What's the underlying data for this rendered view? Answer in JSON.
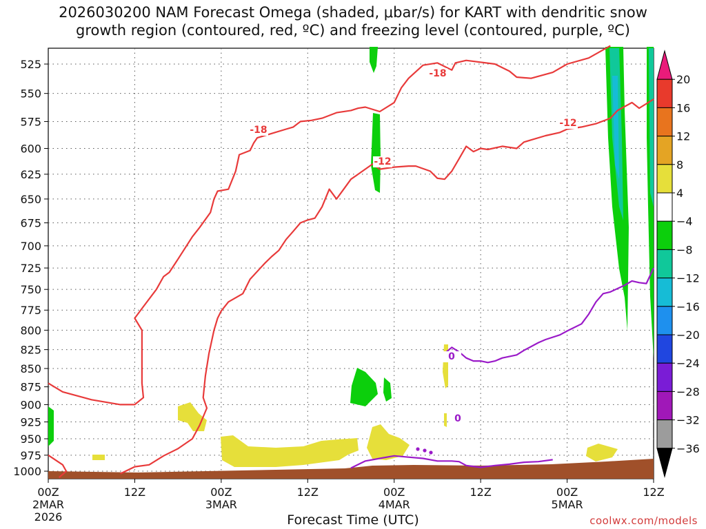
{
  "chart_data": {
    "type": "contour",
    "title_line1": "2026030200 NAM Forecast Omega (shaded, μbar/s) for KART with dendritic snow",
    "title_line2": "growth region (contoured, red, ºC) and freezing level (contoured, purple, ºC)",
    "xlabel": "Forecast Time (UTC)",
    "xlim": [
      0,
      84
    ],
    "ylim": [
      1012,
      512
    ],
    "y_ticks": [
      525,
      550,
      575,
      600,
      625,
      650,
      675,
      700,
      725,
      750,
      775,
      800,
      825,
      850,
      875,
      900,
      925,
      950,
      975,
      1000
    ],
    "x_ticks": [
      {
        "x": 0,
        "line1": "00Z",
        "line2": "2MAR",
        "line3": "2026"
      },
      {
        "x": 12,
        "line1": "12Z",
        "line2": "",
        "line3": ""
      },
      {
        "x": 24,
        "line1": "00Z",
        "line2": "3MAR",
        "line3": ""
      },
      {
        "x": 36,
        "line1": "12Z",
        "line2": "",
        "line3": ""
      },
      {
        "x": 48,
        "line1": "00Z",
        "line2": "4MAR",
        "line3": ""
      },
      {
        "x": 60,
        "line1": "12Z",
        "line2": "",
        "line3": ""
      },
      {
        "x": 72,
        "line1": "00Z",
        "line2": "5MAR",
        "line3": ""
      },
      {
        "x": 84,
        "line1": "12Z",
        "line2": "",
        "line3": ""
      }
    ],
    "colorbar": {
      "levels": [
        20,
        16,
        12,
        8,
        4,
        -4,
        -8,
        -12,
        -16,
        -20,
        -24,
        -28,
        -32,
        -36
      ],
      "colors": [
        "#ea1b7a",
        "#e83a2c",
        "#e8741e",
        "#e4a424",
        "#e6df3a",
        "#ffffff",
        "#0ccf0c",
        "#10c89a",
        "#16bcd6",
        "#1e90ee",
        "#2046e0",
        "#7a1cd6",
        "#a018b8",
        "#9c9c9c",
        "#000000"
      ]
    },
    "contours": [
      {
        "name": "dgz-minus-18",
        "label": "-18",
        "color": "#e83a3a",
        "points": [
          [
            0,
            870
          ],
          [
            2,
            882
          ],
          [
            6,
            893
          ],
          [
            10,
            900
          ],
          [
            12,
            900
          ],
          [
            13.2,
            890
          ],
          [
            13,
            870
          ],
          [
            13,
            800
          ],
          [
            12,
            785
          ],
          [
            13,
            773
          ],
          [
            15,
            750
          ],
          [
            16,
            735
          ],
          [
            16.8,
            730
          ],
          [
            18,
            715
          ],
          [
            20,
            690
          ],
          [
            21,
            680
          ],
          [
            22.5,
            664
          ],
          [
            23,
            650
          ],
          [
            23.5,
            642
          ],
          [
            25,
            640
          ],
          [
            26,
            622
          ],
          [
            26.5,
            606
          ],
          [
            28,
            602
          ],
          [
            28.5,
            595
          ],
          [
            29,
            590
          ],
          [
            31,
            586
          ],
          [
            33,
            582
          ],
          [
            34,
            580
          ],
          [
            35,
            575
          ],
          [
            36.5,
            574
          ],
          [
            38,
            572
          ],
          [
            40,
            567
          ],
          [
            42,
            565
          ],
          [
            43,
            563
          ],
          [
            44,
            562
          ],
          [
            46,
            566
          ],
          [
            48,
            558
          ],
          [
            49,
            545
          ],
          [
            50,
            537
          ],
          [
            52,
            526
          ],
          [
            54,
            524
          ],
          [
            56,
            530
          ],
          [
            56.5,
            524
          ],
          [
            58,
            522
          ],
          [
            62,
            525
          ],
          [
            64,
            531
          ],
          [
            65,
            536
          ],
          [
            67,
            537
          ],
          [
            70,
            532
          ],
          [
            72,
            525
          ],
          [
            75,
            520
          ],
          [
            78,
            510
          ]
        ]
      },
      {
        "name": "dgz-minus-12",
        "label": "-12",
        "color": "#e83a3a",
        "points": [
          [
            0,
            975
          ],
          [
            2,
            990
          ],
          [
            2.5,
            1000
          ],
          [
            1.5,
            1010
          ]
        ]
      },
      {
        "name": "dgz-minus-12-main",
        "label": "-12",
        "color": "#e83a3a",
        "points": [
          [
            10,
            1004
          ],
          [
            12,
            993
          ],
          [
            14,
            990
          ],
          [
            16,
            976
          ],
          [
            18,
            965
          ],
          [
            20,
            950
          ],
          [
            21,
            930
          ],
          [
            22,
            905
          ],
          [
            21.5,
            890
          ],
          [
            21.8,
            860
          ],
          [
            22.3,
            830
          ],
          [
            23,
            800
          ],
          [
            23.5,
            785
          ],
          [
            24,
            776
          ],
          [
            25,
            765
          ],
          [
            27,
            755
          ],
          [
            28,
            738
          ],
          [
            30,
            720
          ],
          [
            31,
            712
          ],
          [
            32,
            705
          ],
          [
            33,
            693
          ],
          [
            34,
            684
          ],
          [
            35,
            675
          ],
          [
            36,
            672
          ],
          [
            37,
            670
          ],
          [
            38,
            658
          ],
          [
            39,
            640
          ],
          [
            40,
            650
          ],
          [
            41,
            640
          ],
          [
            42,
            630
          ],
          [
            43,
            625
          ],
          [
            45,
            615
          ],
          [
            46,
            620
          ],
          [
            48,
            618
          ],
          [
            50,
            617
          ],
          [
            51,
            617
          ],
          [
            53,
            622
          ],
          [
            54,
            629
          ],
          [
            55,
            630
          ],
          [
            56,
            622
          ],
          [
            57,
            610
          ],
          [
            58,
            598
          ],
          [
            59,
            603
          ],
          [
            60,
            600
          ],
          [
            61,
            601
          ],
          [
            63,
            598
          ],
          [
            65,
            600
          ],
          [
            66,
            594
          ],
          [
            67,
            592
          ],
          [
            69,
            588
          ],
          [
            71,
            585
          ],
          [
            72,
            582
          ],
          [
            74,
            580
          ],
          [
            76,
            577
          ],
          [
            78,
            572
          ],
          [
            79,
            565
          ],
          [
            81,
            558
          ],
          [
            82,
            563
          ],
          [
            84,
            555
          ]
        ]
      },
      {
        "name": "freezing-level",
        "label": "0",
        "color": "#9a1ac8",
        "points": [
          [
            42,
            995
          ],
          [
            44,
            984
          ],
          [
            46,
            980
          ],
          [
            48,
            976
          ],
          [
            50,
            978
          ],
          [
            52,
            980
          ],
          [
            54,
            984
          ],
          [
            56,
            984
          ],
          [
            57,
            985
          ],
          [
            58,
            991
          ],
          [
            60,
            994
          ],
          [
            62,
            991
          ],
          [
            64,
            989
          ],
          [
            66,
            986
          ],
          [
            68,
            985
          ],
          [
            70,
            982
          ]
        ]
      },
      {
        "name": "freezing-level-upper",
        "label": "0",
        "color": "#9a1ac8",
        "points": [
          [
            55,
            830
          ],
          [
            56,
            822
          ],
          [
            57,
            828
          ],
          [
            58,
            836
          ],
          [
            59,
            840
          ],
          [
            60,
            840
          ],
          [
            61,
            842
          ],
          [
            62,
            840
          ],
          [
            63,
            836
          ],
          [
            65,
            832
          ],
          [
            66,
            826
          ],
          [
            68,
            816
          ],
          [
            69,
            812
          ],
          [
            71,
            806
          ],
          [
            72,
            801
          ],
          [
            74,
            792
          ],
          [
            75,
            780
          ],
          [
            76,
            765
          ],
          [
            77,
            755
          ],
          [
            78,
            753
          ],
          [
            80,
            745
          ],
          [
            81,
            740
          ],
          [
            82,
            742
          ],
          [
            83,
            743
          ],
          [
            84,
            725
          ]
        ]
      }
    ],
    "annotations": [
      "-18",
      "-12",
      "-18",
      "-12",
      "0",
      "0"
    ],
    "credit": "coolwx.com/models"
  }
}
